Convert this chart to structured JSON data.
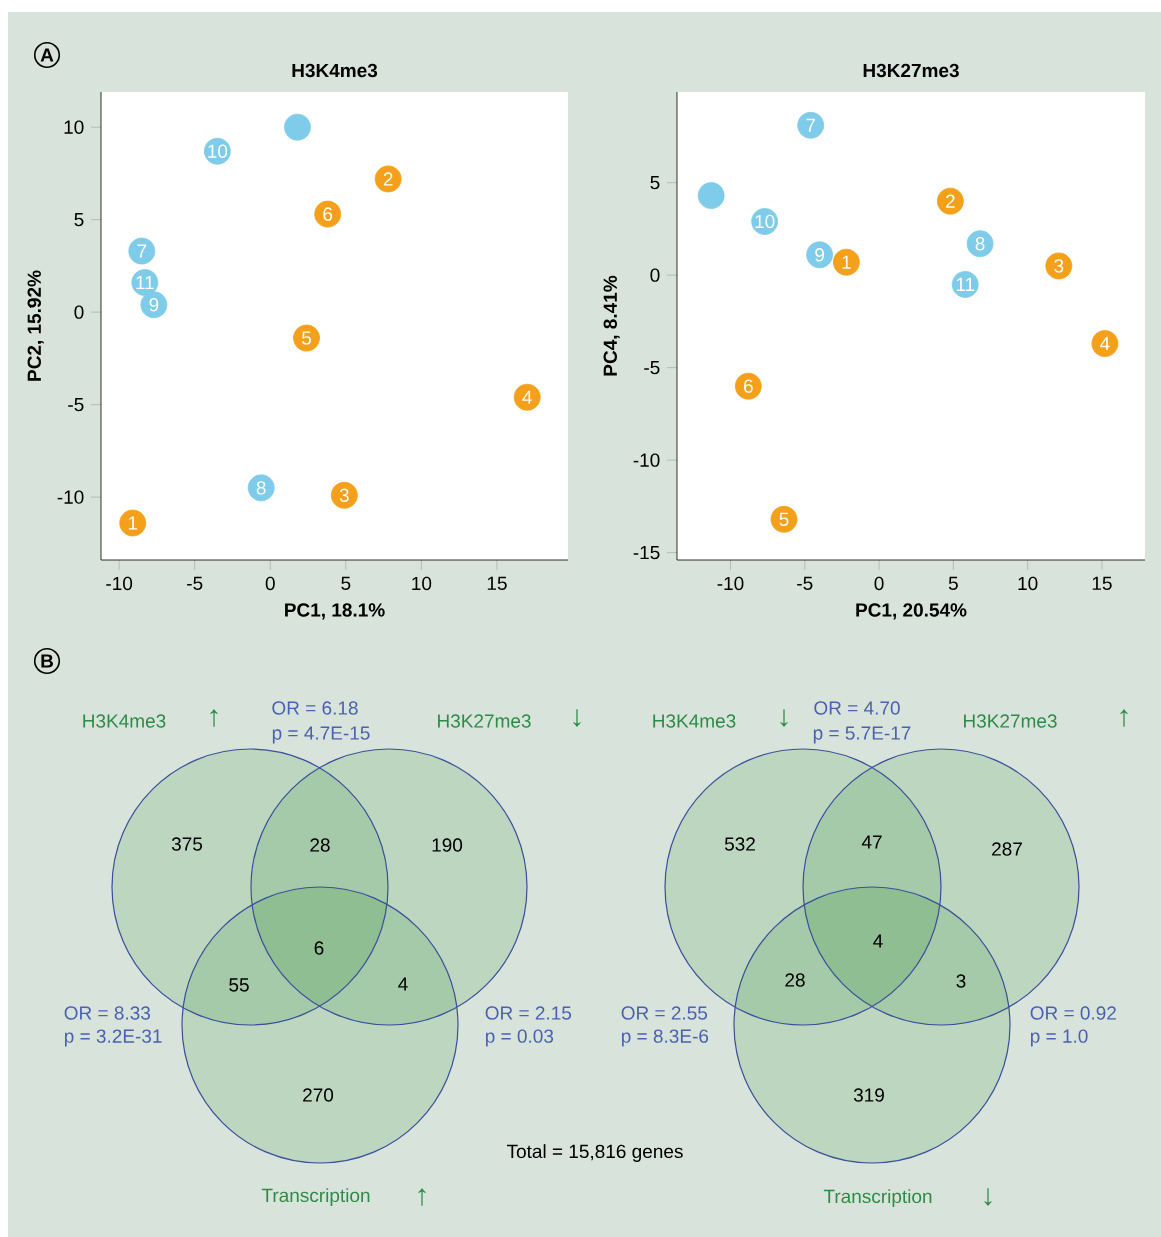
{
  "chart_data": [
    {
      "type": "scatter",
      "title": "H3K4me3",
      "xlabel": "PC1, 18.1%",
      "ylabel": "PC2, 15.92%",
      "marker": "circle",
      "xlim": [
        -11.2,
        19.7
      ],
      "ylim": [
        -13.4,
        11.9
      ],
      "xticks": [
        -10,
        -5,
        0,
        5,
        10,
        15
      ],
      "yticks": [
        -10,
        -5,
        0,
        5,
        10
      ],
      "annotations": [
        "A",
        {
          "text": "10",
          "x": -3.5,
          "y": 8.7
        },
        {
          "text": "7",
          "x": -8.5,
          "y": 3.3
        },
        {
          "text": "11",
          "x": -8.3,
          "y": 1.6
        },
        {
          "text": "9",
          "x": -7.7,
          "y": 0.4
        },
        {
          "text": "8",
          "x": -0.6,
          "y": -9.5
        },
        {
          "text": "2",
          "x": 7.8,
          "y": 7.2
        },
        {
          "text": "6",
          "x": 3.8,
          "y": 5.3
        },
        {
          "text": "5",
          "x": 2.4,
          "y": -1.4
        },
        {
          "text": "4",
          "x": 17.0,
          "y": -4.6
        },
        {
          "text": "3",
          "x": 4.9,
          "y": -9.9
        },
        {
          "text": "1",
          "x": -9.1,
          "y": -11.4
        }
      ],
      "series": [
        {
          "color": "#7ecbea",
          "x": [
            1.8,
            -3.5,
            -8.5,
            -8.3,
            -7.7,
            -0.6
          ],
          "values": [
            10.0,
            8.7,
            3.3,
            1.6,
            0.4,
            -9.5
          ]
        },
        {
          "color": "#f5a01a",
          "x": [
            7.8,
            3.8,
            2.4,
            17.0,
            4.9,
            -9.1
          ],
          "values": [
            7.2,
            5.3,
            -1.4,
            -4.6,
            -9.9,
            -11.4
          ]
        }
      ]
    },
    {
      "type": "scatter",
      "title": "H3K27me3",
      "xlabel": "PC1, 20.54%",
      "ylabel": "PC4, 8.41%",
      "marker": "circle",
      "xlim": [
        -13.6,
        17.9
      ],
      "ylim": [
        -15.4,
        9.9
      ],
      "xticks": [
        -10,
        -5,
        0,
        5,
        10,
        15
      ],
      "yticks": [
        -15,
        -10,
        -5,
        0,
        5
      ],
      "annotations": [
        {
          "text": "7",
          "x": -4.6,
          "y": 8.1
        },
        {
          "text": "10",
          "x": -7.7,
          "y": 2.9
        },
        {
          "text": "9",
          "x": -4.0,
          "y": 1.1
        },
        {
          "text": "8",
          "x": 6.8,
          "y": 1.7
        },
        {
          "text": "11",
          "x": 5.8,
          "y": -0.5
        },
        {
          "text": "2",
          "x": 4.8,
          "y": 4.0
        },
        {
          "text": "1",
          "x": -2.2,
          "y": 0.7
        },
        {
          "text": "3",
          "x": 12.1,
          "y": 0.5
        },
        {
          "text": "4",
          "x": 15.2,
          "y": -3.7
        },
        {
          "text": "6",
          "x": -8.8,
          "y": -6.0
        },
        {
          "text": "5",
          "x": -6.4,
          "y": -13.2
        }
      ],
      "series": [
        {
          "color": "#7ecbea",
          "x": [
            -11.3,
            -4.6,
            -7.7,
            -4.0,
            6.8,
            5.8
          ],
          "values": [
            4.3,
            8.1,
            2.9,
            1.1,
            1.7,
            -0.5
          ]
        },
        {
          "color": "#f5a01a",
          "x": [
            4.8,
            -2.2,
            12.1,
            15.2,
            -8.8,
            -6.4
          ],
          "values": [
            4.0,
            0.7,
            0.5,
            -3.7,
            -6.0,
            -13.2
          ]
        }
      ]
    },
    {
      "type": "other",
      "annotations": [
        "H3K4me3",
        "↑",
        "H3K27me3",
        "↓",
        "Transcription",
        "↑",
        "OR = 6.18",
        "p = 4.7E-15",
        "OR = 8.33",
        "p = 3.2E-31",
        "OR = 2.15",
        "p = 0.03",
        "B",
        "Total = 15,816 genes",
        "375",
        "28",
        "190",
        "55",
        "6",
        "4",
        "270"
      ]
    },
    {
      "type": "other",
      "annotations": [
        "H3K4me3",
        "↓",
        "H3K27me3",
        "↑",
        "Transcription",
        "↓",
        "OR = 4.70",
        "p = 5.7E-17",
        "OR = 2.55",
        "p = 8.3E-6",
        "OR = 0.92",
        "p = 1.0",
        "532",
        "47",
        "287",
        "28",
        "4",
        "3",
        "319"
      ]
    }
  ]
}
